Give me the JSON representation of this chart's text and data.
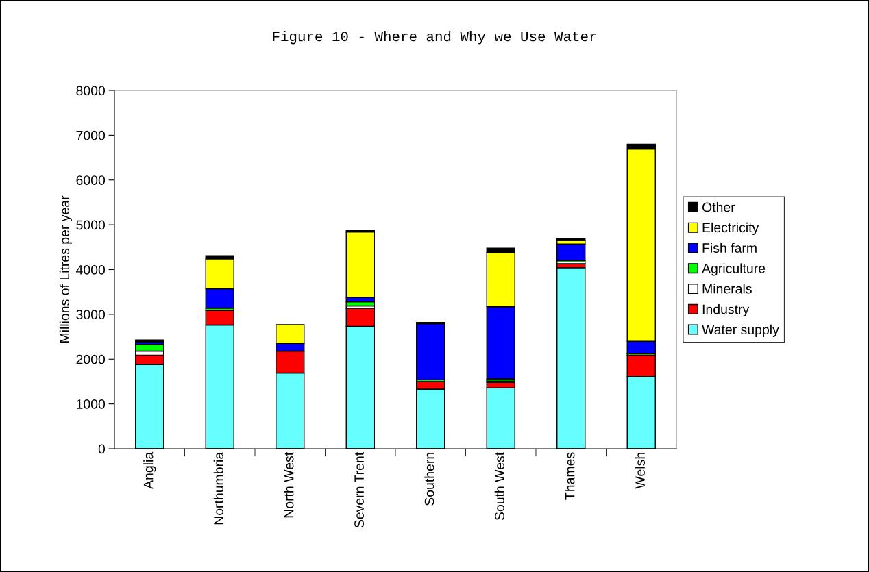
{
  "chart_data": {
    "type": "bar",
    "title": "Figure 10 - Where and Why we Use Water",
    "ylabel": "Millions of Litres per year",
    "categories": [
      "Anglia",
      "Northumbria",
      "North West",
      "Severn Trent",
      "Southern",
      "South West",
      "Thames",
      "Welsh"
    ],
    "stacked": true,
    "ylim": [
      0,
      8000
    ],
    "yticks": [
      0,
      1000,
      2000,
      3000,
      4000,
      5000,
      6000,
      7000,
      8000
    ],
    "grid": false,
    "legend": "right",
    "series": [
      {
        "name": "Water supply",
        "color": "#66ffff",
        "values": [
          1880,
          2760,
          1690,
          2730,
          1330,
          1360,
          4040,
          1610
        ]
      },
      {
        "name": "Industry",
        "color": "#ff0000",
        "values": [
          210,
          330,
          490,
          400,
          170,
          120,
          90,
          480
        ]
      },
      {
        "name": "Minerals",
        "color": "#ffffff",
        "values": [
          90,
          null,
          null,
          60,
          0,
          30,
          40,
          null
        ]
      },
      {
        "name": "Agriculture",
        "color": "#00ff00",
        "values": [
          150,
          50,
          0,
          90,
          40,
          50,
          30,
          30
        ]
      },
      {
        "name": "Fish farm",
        "color": "#0000ff",
        "values": [
          50,
          430,
          170,
          100,
          1250,
          1610,
          370,
          280
        ]
      },
      {
        "name": "Electricity",
        "color": "#ffff00",
        "values": [
          0,
          670,
          420,
          1460,
          30,
          1210,
          80,
          4290
        ]
      },
      {
        "name": "Other",
        "color": "#000000",
        "values": [
          50,
          70,
          0,
          30,
          0,
          100,
          50,
          110
        ]
      }
    ]
  }
}
